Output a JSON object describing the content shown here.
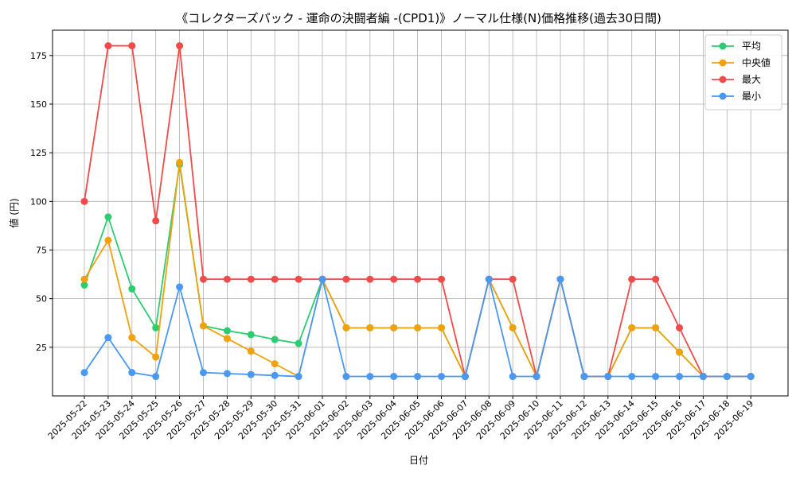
{
  "chart_data": {
    "type": "line",
    "title": "《コレクターズパック - 運命の決闘者編 -(CPD1)》ノーマル仕様(N)価格推移(過去30日間)",
    "xlabel": "日付",
    "ylabel": "値 (円)",
    "ylim": [
      0,
      188
    ],
    "yticks": [
      25,
      50,
      75,
      100,
      125,
      150,
      175
    ],
    "grid": true,
    "legend_position": "top-right",
    "categories": [
      "2025-05-22",
      "2025-05-23",
      "2025-05-24",
      "2025-05-25",
      "2025-05-26",
      "2025-05-27",
      "2025-05-28",
      "2025-05-29",
      "2025-05-30",
      "2025-05-31",
      "2025-06-01",
      "2025-06-02",
      "2025-06-03",
      "2025-06-04",
      "2025-06-05",
      "2025-06-06",
      "2025-06-07",
      "2025-06-08",
      "2025-06-09",
      "2025-06-10",
      "2025-06-11",
      "2025-06-12",
      "2025-06-13",
      "2025-06-14",
      "2025-06-15",
      "2025-06-16",
      "2025-06-17",
      "2025-06-18",
      "2025-06-19"
    ],
    "series": [
      {
        "name": "平均",
        "color": "#2ecc71",
        "values": [
          57,
          92,
          55,
          35,
          119,
          36,
          33.5,
          31.5,
          29,
          27,
          60,
          35,
          35,
          35,
          35,
          35,
          10,
          60,
          35,
          10,
          60,
          10,
          10,
          35,
          35,
          22.5,
          10,
          10,
          10
        ]
      },
      {
        "name": "中央値",
        "color": "#f1a10b",
        "values": [
          60,
          80,
          30,
          20,
          120,
          36,
          29.5,
          23,
          16.5,
          10,
          60,
          35,
          35,
          35,
          35,
          35,
          10,
          60,
          35,
          10,
          60,
          10,
          10,
          35,
          35,
          22.5,
          10,
          10,
          10
        ]
      },
      {
        "name": "最大",
        "color": "#ef4b4b",
        "values": [
          100,
          180,
          180,
          90,
          180,
          60,
          60,
          60,
          60,
          60,
          60,
          60,
          60,
          60,
          60,
          60,
          10,
          60,
          60,
          10,
          60,
          10,
          10,
          60,
          60,
          35,
          10,
          10,
          10
        ]
      },
      {
        "name": "最小",
        "color": "#4a98f0",
        "values": [
          12,
          30,
          12,
          10,
          56,
          12,
          11.5,
          11,
          10.5,
          10,
          60,
          10,
          10,
          10,
          10,
          10,
          10,
          60,
          10,
          10,
          60,
          10,
          10,
          10,
          10,
          10,
          10,
          10,
          10
        ]
      }
    ]
  }
}
